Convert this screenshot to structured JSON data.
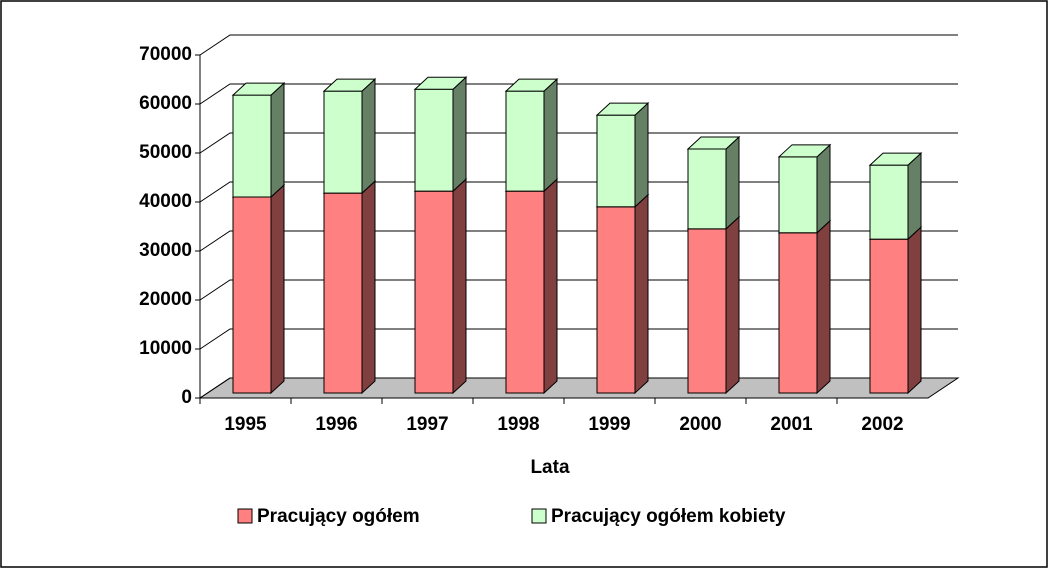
{
  "chart_data": {
    "type": "bar3d_stacked",
    "x_label": "Lata",
    "categories": [
      "1995",
      "1996",
      "1997",
      "1998",
      "1999",
      "2000",
      "2001",
      "2002"
    ],
    "series": [
      {
        "name": "Pracujący ogółem",
        "color": "#ff8080",
        "values": [
          40000,
          40800,
          41200,
          41200,
          38000,
          33500,
          32700,
          31400
        ]
      },
      {
        "name": "Pracujący ogółem kobiety",
        "color": "#ccffcc",
        "values": [
          20800,
          20800,
          20800,
          20400,
          18700,
          16300,
          15500,
          15100
        ]
      }
    ],
    "ylim": [
      0,
      70000
    ],
    "yticks": [
      0,
      10000,
      20000,
      30000,
      40000,
      50000,
      60000,
      70000
    ],
    "grid": true
  }
}
